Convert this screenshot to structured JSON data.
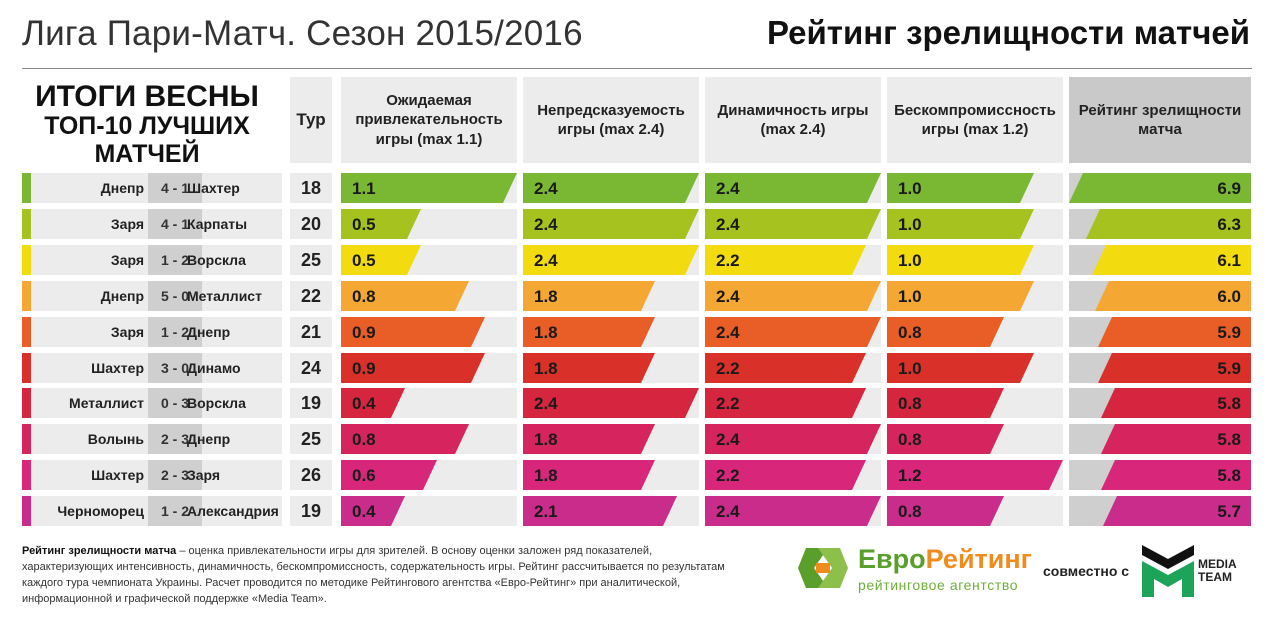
{
  "header": {
    "title": "Лига Пари-Матч. Сезон 2015/2016",
    "right_title": "Рейтинг зрелищности матчей"
  },
  "side": {
    "line1": "ИТОГИ ВЕСНЫ",
    "line2": "ТОП-10 ЛУЧШИХ",
    "line3": "МАТЧЕЙ"
  },
  "columns": {
    "tur": "Тур",
    "expected": "Ожидаемая привлекательность игры (max 1.1)",
    "unpredictability": "Непредсказуемость игры (max 2.4)",
    "dynamics": "Динамичность игры (max 2.4)",
    "uncompromising": "Бескомпромиссность игры (max 1.2)",
    "rating": "Рейтинг зрелищности матча"
  },
  "chart_data": {
    "type": "table",
    "metric_max": {
      "expected": 1.1,
      "unpredictability": 2.4,
      "dynamics": 2.4,
      "uncompromising": 1.2,
      "rating": 6.9
    },
    "rows": [
      {
        "home": "Днепр",
        "score": "4 - 1",
        "away": "Шахтер",
        "tur": "18",
        "expected": 1.1,
        "unpredictability": 2.4,
        "dynamics": 2.4,
        "uncompromising": 1.0,
        "rating": 6.9,
        "color": "#7ab833"
      },
      {
        "home": "Заря",
        "score": "4 - 1",
        "away": "Карпаты",
        "tur": "20",
        "expected": 0.5,
        "unpredictability": 2.4,
        "dynamics": 2.4,
        "uncompromising": 1.0,
        "rating": 6.3,
        "color": "#a6c21f"
      },
      {
        "home": "Заря",
        "score": "1 - 2",
        "away": "Ворскла",
        "tur": "25",
        "expected": 0.5,
        "unpredictability": 2.4,
        "dynamics": 2.2,
        "uncompromising": 1.0,
        "rating": 6.1,
        "color": "#f2dc0f"
      },
      {
        "home": "Днепр",
        "score": "5 - 0",
        "away": "Металлист",
        "tur": "22",
        "expected": 0.8,
        "unpredictability": 1.8,
        "dynamics": 2.4,
        "uncompromising": 1.0,
        "rating": 6.0,
        "color": "#f4a733"
      },
      {
        "home": "Заря",
        "score": "1 - 2",
        "away": "Днепр",
        "tur": "21",
        "expected": 0.9,
        "unpredictability": 1.8,
        "dynamics": 2.4,
        "uncompromising": 0.8,
        "rating": 5.9,
        "color": "#e95e26"
      },
      {
        "home": "Шахтер",
        "score": "3 - 0",
        "away": "Динамо",
        "tur": "24",
        "expected": 0.9,
        "unpredictability": 1.8,
        "dynamics": 2.2,
        "uncompromising": 1.0,
        "rating": 5.9,
        "color": "#d9312a"
      },
      {
        "home": "Металлист",
        "score": "0 - 3",
        "away": "Ворскла",
        "tur": "19",
        "expected": 0.4,
        "unpredictability": 2.4,
        "dynamics": 2.2,
        "uncompromising": 0.8,
        "rating": 5.8,
        "color": "#d6253f"
      },
      {
        "home": "Волынь",
        "score": "2 - 3",
        "away": "Днепр",
        "tur": "25",
        "expected": 0.8,
        "unpredictability": 1.8,
        "dynamics": 2.4,
        "uncompromising": 0.8,
        "rating": 5.8,
        "color": "#d6245f"
      },
      {
        "home": "Шахтер",
        "score": "2 - 3",
        "away": "Заря",
        "tur": "26",
        "expected": 0.6,
        "unpredictability": 1.8,
        "dynamics": 2.2,
        "uncompromising": 1.2,
        "rating": 5.8,
        "color": "#d8267b"
      },
      {
        "home": "Черноморец",
        "score": "1 - 2",
        "away": "Александрия",
        "tur": "19",
        "expected": 0.4,
        "unpredictability": 2.1,
        "dynamics": 2.4,
        "uncompromising": 0.8,
        "rating": 5.7,
        "color": "#c92c8a"
      }
    ]
  },
  "footnote": {
    "bold": "Рейтинг зрелищности матча",
    "text": " – оценка привлекательности игры для зрителей. В основу оценки заложен ряд показателей, характеризующих интенсивность, динамичность, бескомпромиссность, содержательность игры. Рейтинг рассчитывается по результатам каждого тура чемпионата Украины. Расчет проводится по методике Рейтингового агентства «Евро-Рейтинг» при аналитической, информационной и графической поддержке «Media Team»."
  },
  "logos": {
    "euro_part1": "Евро",
    "euro_part2": "Рейтинг",
    "euro_sub": "рейтинговое агентство",
    "together": "совместно с",
    "mt_line1": "MEDIA",
    "mt_line2": "TEAM"
  }
}
